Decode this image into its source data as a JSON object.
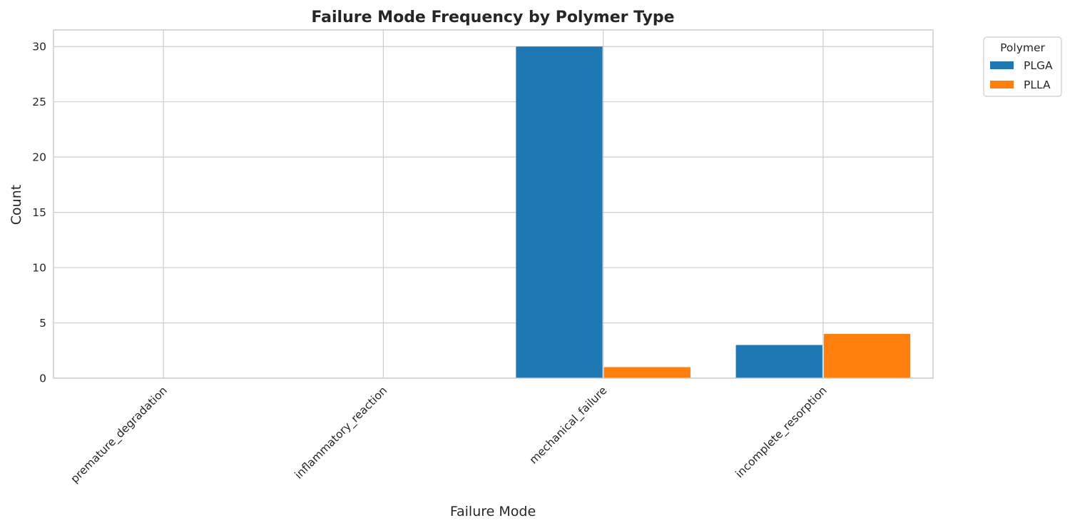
{
  "chart_data": {
    "type": "bar",
    "title": "Failure Mode Frequency by Polymer Type",
    "xlabel": "Failure Mode",
    "ylabel": "Count",
    "categories": [
      "premature_degradation",
      "inflammatory_reaction",
      "mechanical_failure",
      "incomplete_resorption"
    ],
    "series": [
      {
        "name": "PLGA",
        "values": [
          0,
          0,
          30,
          3
        ],
        "color": "#1f77b4"
      },
      {
        "name": "PLLA",
        "values": [
          0,
          0,
          1,
          4
        ],
        "color": "#ff7f0e"
      }
    ],
    "ylim": [
      0,
      31.5
    ],
    "yticks": [
      0,
      5,
      10,
      15,
      20,
      25,
      30
    ],
    "grid": true,
    "legend": {
      "title": "Polymer",
      "placement": "outside-top-right"
    }
  }
}
